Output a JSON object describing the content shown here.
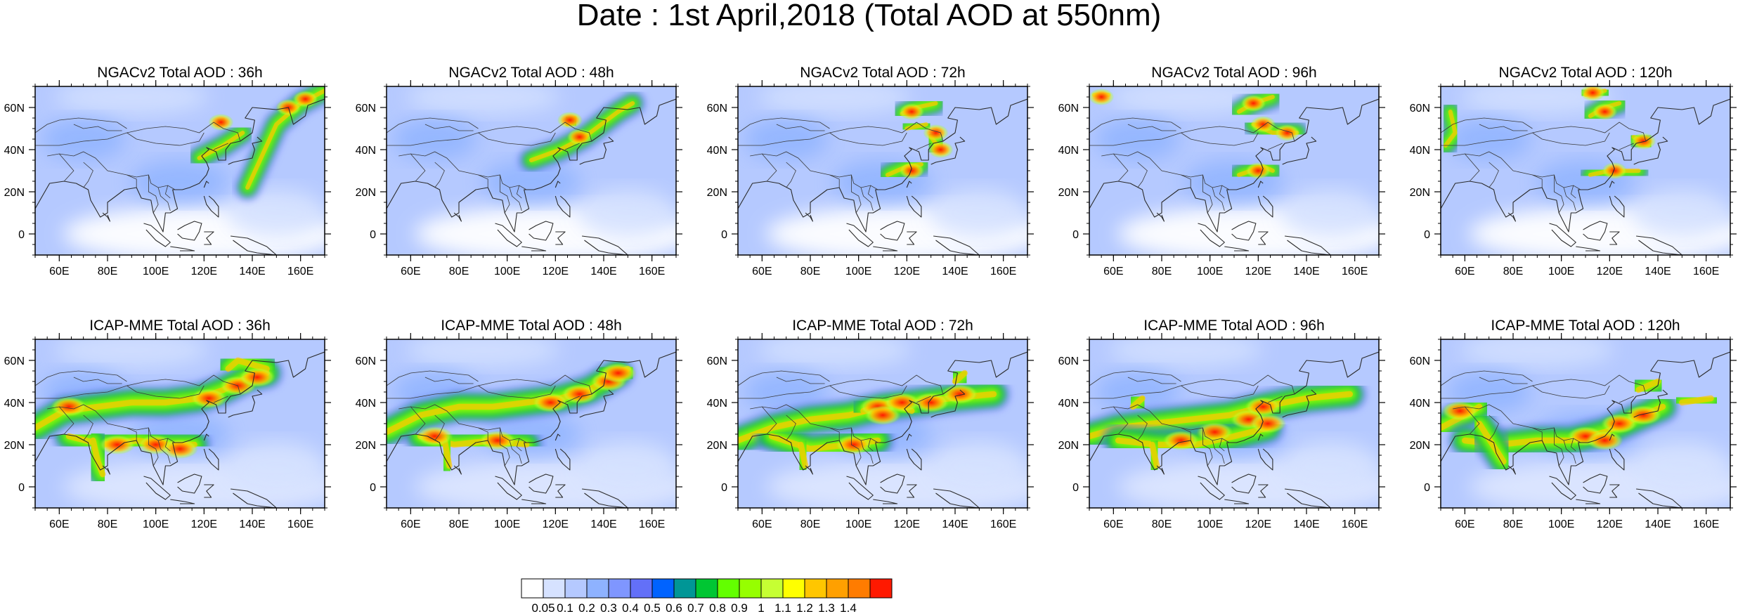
{
  "title": "Date : 1st April,2018 (Total AOD at 550nm)",
  "rows": [
    {
      "model": "NGACv2",
      "panels": [
        {
          "title": "NGACv2 Total AOD : 36h",
          "plumes": [
            [
              [
                138,
                22
              ],
              [
                150,
                52
              ],
              [
                160,
                62
              ],
              [
                170,
                68
              ]
            ],
            [
              [
                118,
                36
              ],
              [
                128,
                42
              ],
              [
                136,
                48
              ]
            ],
            [
              [
                126,
                52
              ],
              [
                128,
                54
              ]
            ]
          ],
          "hotspots": [
            [
              155,
              60
            ],
            [
              162,
              64
            ],
            [
              127,
              53
            ]
          ]
        },
        {
          "title": "NGACv2 Total AOD : 48h",
          "plumes": [
            [
              [
                110,
                35
              ],
              [
                122,
                40
              ],
              [
                132,
                46
              ],
              [
                146,
                58
              ],
              [
                152,
                62
              ]
            ],
            [
              [
                125,
                52
              ],
              [
                128,
                55
              ]
            ]
          ],
          "hotspots": [
            [
              126,
              54
            ],
            [
              130,
              46
            ]
          ]
        },
        {
          "title": "NGACv2 Total AOD : 72h",
          "plumes": [
            [
              [
                118,
                57
              ],
              [
                124,
                60
              ],
              [
                132,
                62
              ]
            ],
            [
              [
                130,
                46
              ],
              [
                134,
                40
              ]
            ],
            [
              [
                112,
                28
              ],
              [
                120,
                32
              ],
              [
                126,
                33
              ]
            ],
            [
              [
                120,
                50
              ],
              [
                128,
                52
              ]
            ]
          ],
          "hotspots": [
            [
              122,
              58
            ],
            [
              132,
              48
            ],
            [
              134,
              40
            ],
            [
              122,
              30
            ]
          ]
        },
        {
          "title": "NGACv2 Total AOD : 96h",
          "plumes": [
            [
              [
                112,
                58
              ],
              [
                118,
                62
              ],
              [
                126,
                65
              ]
            ],
            [
              [
                118,
                52
              ],
              [
                126,
                48
              ],
              [
                136,
                48
              ]
            ],
            [
              [
                112,
                28
              ],
              [
                122,
                32
              ],
              [
                126,
                30
              ]
            ],
            [
              [
                52,
                66
              ],
              [
                58,
                66
              ]
            ]
          ],
          "hotspots": [
            [
              118,
              62
            ],
            [
              122,
              52
            ],
            [
              132,
              48
            ],
            [
              120,
              30
            ],
            [
              55,
              65
            ]
          ]
        },
        {
          "title": "NGACv2 Total AOD : 120h",
          "plumes": [
            [
              [
                112,
                56
              ],
              [
                118,
                60
              ],
              [
                124,
                62
              ]
            ],
            [
              [
                130,
                46
              ],
              [
                136,
                42
              ]
            ],
            [
              [
                112,
                28
              ],
              [
                120,
                30
              ],
              [
                132,
                30
              ]
            ],
            [
              [
                54,
                58
              ],
              [
                56,
                48
              ],
              [
                52,
                42
              ]
            ],
            [
              [
                110,
                66
              ],
              [
                118,
                68
              ]
            ]
          ],
          "hotspots": [
            [
              118,
              58
            ],
            [
              134,
              44
            ],
            [
              122,
              30
            ],
            [
              113,
              67
            ]
          ]
        }
      ]
    },
    {
      "model": "ICAP-MME",
      "panels": [
        {
          "title": "ICAP-MME Total AOD : 36h",
          "plumes": [
            [
              [
                50,
                28
              ],
              [
                62,
                36
              ],
              [
                76,
                38
              ],
              [
                90,
                40
              ],
              [
                104,
                40
              ],
              [
                118,
                42
              ],
              [
                128,
                46
              ],
              [
                138,
                52
              ],
              [
                146,
                54
              ]
            ],
            [
              [
                64,
                24
              ],
              [
                78,
                20
              ],
              [
                92,
                22
              ],
              [
                104,
                20
              ],
              [
                116,
                20
              ]
            ],
            [
              [
                130,
                56
              ],
              [
                134,
                60
              ],
              [
                146,
                56
              ]
            ],
            [
              [
                74,
                22
              ],
              [
                76,
                12
              ],
              [
                78,
                6
              ]
            ]
          ],
          "hotspots": [
            [
              122,
              42
            ],
            [
              134,
              48
            ],
            [
              142,
              52
            ],
            [
              64,
              38
            ],
            [
              84,
              20
            ],
            [
              100,
              20
            ],
            [
              110,
              18
            ]
          ]
        },
        {
          "title": "ICAP-MME Total AOD : 48h",
          "plumes": [
            [
              [
                50,
                26
              ],
              [
                64,
                34
              ],
              [
                80,
                38
              ],
              [
                94,
                38
              ],
              [
                108,
                40
              ],
              [
                122,
                42
              ],
              [
                134,
                46
              ],
              [
                146,
                54
              ]
            ],
            [
              [
                64,
                24
              ],
              [
                78,
                20
              ],
              [
                94,
                22
              ],
              [
                108,
                20
              ]
            ],
            [
              [
                74,
                22
              ],
              [
                76,
                10
              ]
            ],
            [
              [
                140,
                52
              ],
              [
                150,
                56
              ]
            ]
          ],
          "hotspots": [
            [
              118,
              40
            ],
            [
              130,
              44
            ],
            [
              142,
              50
            ],
            [
              70,
              24
            ],
            [
              96,
              22
            ],
            [
              146,
              54
            ]
          ]
        },
        {
          "title": "ICAP-MME Total AOD : 72h",
          "plumes": [
            [
              [
                50,
                22
              ],
              [
                64,
                28
              ],
              [
                80,
                32
              ],
              [
                96,
                34
              ],
              [
                110,
                38
              ],
              [
                124,
                40
              ],
              [
                138,
                42
              ],
              [
                156,
                44
              ]
            ],
            [
              [
                64,
                24
              ],
              [
                80,
                18
              ],
              [
                96,
                20
              ],
              [
                108,
                22
              ]
            ],
            [
              [
                102,
                36
              ],
              [
                114,
                40
              ],
              [
                122,
                36
              ]
            ],
            [
              [
                140,
                50
              ],
              [
                144,
                54
              ]
            ],
            [
              [
                76,
                20
              ],
              [
                78,
                10
              ]
            ]
          ],
          "hotspots": [
            [
              108,
              38
            ],
            [
              118,
              40
            ],
            [
              130,
              40
            ],
            [
              110,
              34
            ],
            [
              98,
              20
            ],
            [
              142,
              44
            ]
          ]
        },
        {
          "title": "ICAP-MME Total AOD : 96h",
          "plumes": [
            [
              [
                50,
                24
              ],
              [
                62,
                28
              ],
              [
                76,
                30
              ],
              [
                92,
                32
              ],
              [
                108,
                34
              ],
              [
                122,
                38
              ],
              [
                140,
                42
              ],
              [
                158,
                44
              ]
            ],
            [
              [
                62,
                22
              ],
              [
                78,
                20
              ],
              [
                94,
                20
              ],
              [
                110,
                24
              ],
              [
                124,
                28
              ]
            ],
            [
              [
                68,
                38
              ],
              [
                72,
                42
              ]
            ],
            [
              [
                76,
                20
              ],
              [
                78,
                10
              ]
            ]
          ],
          "hotspots": [
            [
              116,
              32
            ],
            [
              124,
              30
            ],
            [
              122,
              38
            ],
            [
              102,
              26
            ],
            [
              88,
              22
            ]
          ]
        },
        {
          "title": "ICAP-MME Total AOD : 120h",
          "plumes": [
            [
              [
                50,
                28
              ],
              [
                60,
                34
              ],
              [
                66,
                38
              ]
            ],
            [
              [
                60,
                22
              ],
              [
                74,
                20
              ],
              [
                90,
                22
              ],
              [
                104,
                22
              ],
              [
                118,
                26
              ],
              [
                130,
                32
              ],
              [
                142,
                38
              ]
            ],
            [
              [
                132,
                46
              ],
              [
                140,
                50
              ]
            ],
            [
              [
                66,
                30
              ],
              [
                76,
                12
              ]
            ],
            [
              [
                150,
                40
              ],
              [
                162,
                42
              ]
            ]
          ],
          "hotspots": [
            [
              58,
              36
            ],
            [
              110,
              24
            ],
            [
              124,
              30
            ],
            [
              118,
              22
            ],
            [
              134,
              34
            ]
          ]
        }
      ]
    }
  ],
  "axes": {
    "xticks": [
      "60E",
      "80E",
      "100E",
      "120E",
      "140E",
      "160E"
    ],
    "xtick_values": [
      60,
      80,
      100,
      120,
      140,
      160
    ],
    "yticks": [
      "0",
      "20N",
      "40N",
      "60N"
    ],
    "ytick_values": [
      0,
      20,
      40,
      60
    ],
    "lon_range": [
      50,
      170
    ],
    "lat_range": [
      -10,
      70
    ]
  },
  "colorbar": {
    "colors": [
      "#ffffff",
      "#d6e2ff",
      "#b5c9ff",
      "#8eb2ff",
      "#7f96ff",
      "#6370f8",
      "#0063ff",
      "#009696",
      "#00c633",
      "#63ff00",
      "#96ff00",
      "#c6ff33",
      "#ffff00",
      "#ffc600",
      "#ffa000",
      "#ff7c00",
      "#ff1900"
    ],
    "labels": [
      "0.05",
      "0.1",
      "0.2",
      "0.3",
      "0.4",
      "0.5",
      "0.6",
      "0.7",
      "0.8",
      "0.9",
      "1",
      "1.1",
      "1.2",
      "1.3",
      "1.4"
    ]
  }
}
